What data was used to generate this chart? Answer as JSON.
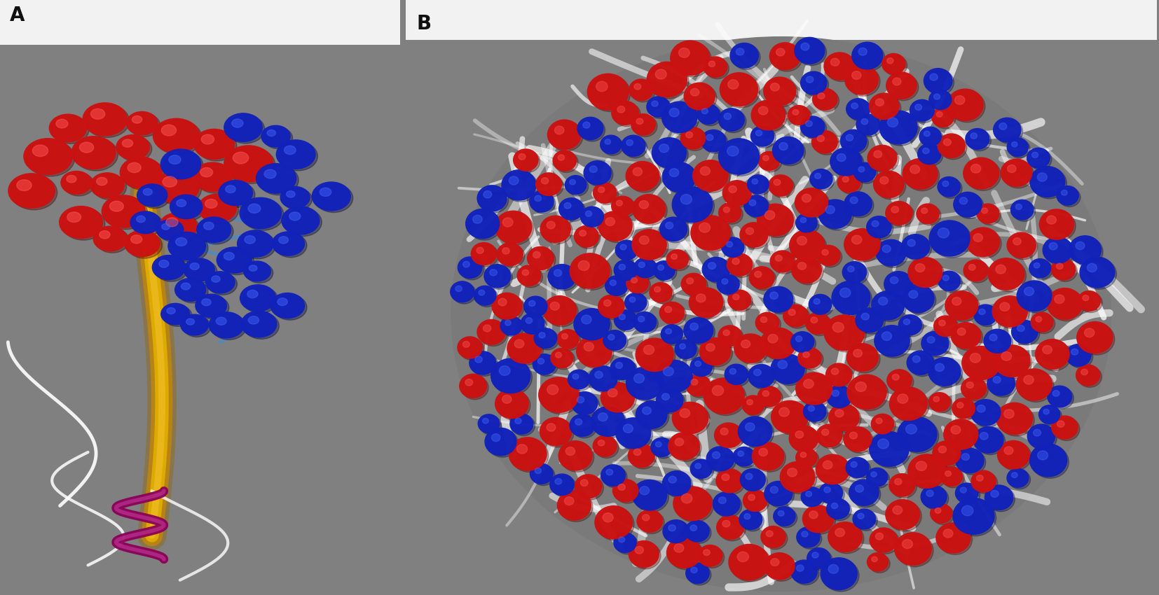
{
  "fig_bg": "#808080",
  "panel_bg": "#808080",
  "label_A": "A",
  "label_B": "B",
  "label_fontsize": 20,
  "label_color": "#111111",
  "label_weight": "bold",
  "fig_width": 16.54,
  "fig_height": 8.5,
  "top_strip_color": "#f0f0f0",
  "gray": "#808080",
  "red": "#cc1111",
  "blue": "#1122bb",
  "yellow": "#dda000",
  "white": "#e8e8e8",
  "purple": "#8b0057",
  "light_blue": "#5588bb",
  "dark_red": "#440000",
  "dark_blue": "#000033"
}
